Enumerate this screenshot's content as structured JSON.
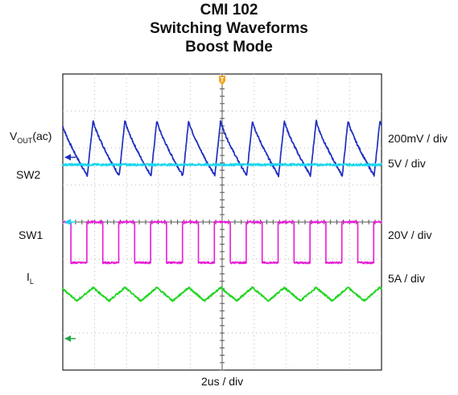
{
  "chart_data": {
    "type": "line",
    "title_lines": [
      "CMI 102",
      "Switching Waveforms",
      "Boost Mode"
    ],
    "time_scale": "2us / div",
    "grid": true,
    "divisions": {
      "x": 10,
      "y": 8
    },
    "series": [
      {
        "name": "VOUT(ac)",
        "label_main": "V",
        "label_sub": "OUT",
        "label_suffix": "(ac)",
        "scale": "200mV / div",
        "color": "#1f2fbf",
        "shape": "sawtooth",
        "period_div": 1.0,
        "peak_phase_div": 0.95,
        "level_div": 6.0,
        "amplitude_div": 0.75
      },
      {
        "name": "SW2",
        "scale": "5V / div",
        "color": "#19d6ef",
        "shape": "flat",
        "level_div": 5.55
      },
      {
        "name": "SW1",
        "scale": "20V / div",
        "color": "#e81ad6",
        "shape": "square",
        "period_div": 1.0,
        "high_start_div": 0.75,
        "duty": 0.5,
        "low_div": 2.9,
        "high_div": 4.0
      },
      {
        "name": "IL",
        "label_main": "I",
        "label_sub": "L",
        "label_suffix": "",
        "scale": "5A / div",
        "color": "#22d522",
        "shape": "triangle",
        "period_div": 1.0,
        "peak_phase_div": 0.95,
        "level_div": 2.05,
        "amplitude_div": 0.18
      }
    ],
    "markers": {
      "ground_arrows": [
        {
          "series": "VOUT(ac)",
          "level_div": 5.75,
          "color": "#1f2fbf"
        },
        {
          "series": "SW2",
          "level_div": 4.0,
          "color": "#19d6ef"
        },
        {
          "series": "IL",
          "level_div": 0.85,
          "color": "#22a84a"
        }
      ],
      "trigger": {
        "color": "#f2a21c",
        "symbol": "T"
      }
    }
  }
}
